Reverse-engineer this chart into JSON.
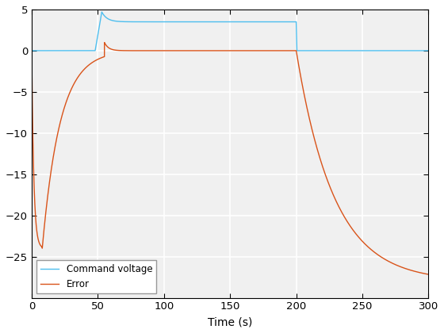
{
  "title": "",
  "xlabel": "Time (s)",
  "xlim": [
    0,
    300
  ],
  "ylim": [
    -30,
    5
  ],
  "yticks": [
    -25,
    -20,
    -15,
    -10,
    -5,
    0,
    5
  ],
  "xticks": [
    0,
    50,
    100,
    150,
    200,
    250,
    300
  ],
  "grid": true,
  "command_voltage_color": "#4DBEEE",
  "error_color": "#D95319",
  "legend_labels": [
    "Command voltage",
    "Error"
  ],
  "axes_facecolor": "#F0F0F0",
  "figure_facecolor": "#FFFFFF",
  "figsize": [
    5.6,
    4.2
  ],
  "dpi": 100
}
